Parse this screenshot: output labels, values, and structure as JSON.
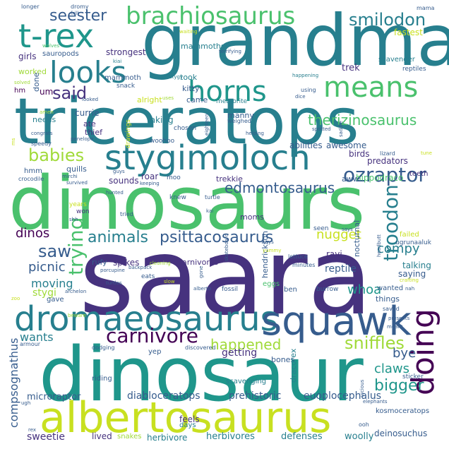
{
  "palette": {
    "dark_purple": "#46327e",
    "deep_purple": "#440154",
    "blue": "#365c8d",
    "teal": "#277f8e",
    "teal_dark": "#1f968b",
    "green": "#4ac16d",
    "light_green": "#a0da39",
    "yellow": "#c8e020",
    "pale_yellow": "#fde725"
  },
  "words": {
    "saara": "saara",
    "dinosaurs": "dinosaurs",
    "dinosaur": "dinosaur",
    "grandma": "grandma",
    "triceratops": "triceratops",
    "stygimoloch": "stygimoloch",
    "albertosaurus": "albertosaurus",
    "dromaeosaurus": "dromaeosaurus",
    "squawk": "squawk",
    "t_rex": "t-rex",
    "brachiosaurus": "brachiosaurus",
    "horns": "horns",
    "means": "means",
    "looks": "looks",
    "seester": "seester",
    "smilodon": "smilodon",
    "doing": "doing",
    "ozraptor": "ozraptor",
    "troodon": "troodon",
    "trying": "trying",
    "carnivore": "carnivore",
    "bigger": "bigger",
    "sniffles": "sniffles",
    "happened": "happened",
    "animals": "animals",
    "psittacosaurus": "psittacosaurus",
    "edmontosaurus": "edmontosaurus",
    "babies": "babies",
    "said": "said",
    "saw": "saw",
    "therizinosaurus": "therizinosaurus",
    "nugget": "nugget",
    "compy": "compy",
    "picnic": "picnic",
    "moving": "moving",
    "dinos": "dinos",
    "whoa": "whoa",
    "reptile": "reptile",
    "claws": "claws",
    "bye": "bye",
    "compsognathus": "compsognathus",
    "diabloceratops": "diabloceratops",
    "prehistoric": "prehistoric",
    "euoplocephalus": "euoplocephalus",
    "kosmoceratops": "kosmoceratops",
    "deinosuchus": "deinosuchus",
    "herbivores": "herbivores",
    "herbivore": "herbivore",
    "defenses": "defenses",
    "woolly": "woolly",
    "sweetie": "sweetie",
    "lived": "lived",
    "snakes": "snakes",
    "feels": "feels",
    "days": "days",
    "microraptor": "microraptor",
    "riding": "riding",
    "scavenging": "scavenging",
    "getting": "getting",
    "bones": "bones",
    "dracorex": "dracorex",
    "wants": "wants",
    "armour": "armour",
    "dodging": "dodging",
    "yep": "yep",
    "discovered": "discovered",
    "mammoths": "mammoths",
    "took": "took",
    "kitty": "kitty",
    "strongest": "strongest",
    "sauropods": "sauropods",
    "kiai": "kiai",
    "mammoth": "mammoth",
    "snack": "snack",
    "stygy": "stygy",
    "girls": "girls",
    "wolves": "wolves",
    "dromy": "dromy",
    "frill": "frill",
    "longer": "longer",
    "mama": "mama",
    "fastest": "fastest",
    "scavenger": "scavenger",
    "reptiles": "reptiles",
    "trek": "trek",
    "um": "um",
    "done": "done",
    "worked": "worked",
    "hm": "hm",
    "solved": "solved",
    "needs": "needs",
    "currie": "currie",
    "ate": "ate",
    "thief": "thief",
    "taking": "taking",
    "chosen": "chosen",
    "alright": "alright",
    "came": "came",
    "meteorite": "meteorite",
    "manny": "manny",
    "weighed": "weighed",
    "eighteen": "eighteen",
    "dice": "dice",
    "using": "using",
    "happening": "happening",
    "terrifying": "terrifying",
    "waiting": "waiting",
    "helping": "helping",
    "abilities": "abilities",
    "awesome": "awesome",
    "spotted": "spotted",
    "birds": "birds",
    "lizard": "lizard",
    "predators": "predators",
    "teeth": "teeth",
    "hmm": "hmm",
    "quills": "quills",
    "crocodile": "crocodile",
    "survived": "survived",
    "sounds": "sounds",
    "roar": "roar",
    "moo": "moo",
    "trekkie": "trekkie",
    "aww": "aww",
    "hippodraco": "hippodraco",
    "moms": "moms",
    "years": "years",
    "won": "won",
    "shh": "shh",
    "seen": "seen",
    "kai": "kai",
    "turtle": "turtle",
    "knew": "knew",
    "tried": "tried",
    "hunted": "hunted",
    "ravi": "ravi",
    "nocturnal": "nocturnal",
    "failed": "failed",
    "ugrunaaluk": "ugrunaaluk",
    "talking": "talking",
    "saying": "saying",
    "crafting": "crafting",
    "spikes": "spikes",
    "carnivores": "carnivores",
    "rufy": "rufy",
    "eats": "eats",
    "stygi": "stygi",
    "gave": "gave",
    "archelon": "archelon",
    "turtles": "turtles",
    "alberto": "alberto",
    "fossil": "fossil",
    "eggs": "eggs",
    "ben": "ben",
    "burrow": "burrow",
    "hendrickson": "hendrickson",
    "lettuce": "lettuce",
    "minutes": "minutes",
    "things": "things",
    "wanted": "wanted",
    "saved": "saved",
    "presents": "presents",
    "meant": "meant",
    "skateboard": "skateboard",
    "cleaning": "cleaning",
    "backpack": "backpack",
    "porcupine": "porcupine",
    "penelope": "penelope",
    "congrats": "congrats",
    "speedy": "speedy",
    "mirchi": "mirchi",
    "drawings": "drawings",
    "woohoo": "woohoo",
    "guys": "guys",
    "keeping": "keeping",
    "looked": "looked",
    "uses": "uses",
    "saddle": "saddle",
    "ooh": "ooh",
    "rex": "rex",
    "ugh": "ugh",
    "sticker": "sticker",
    "elephants": "elephants",
    "vicious": "vicious",
    "amen": "amen",
    "ms": "ms",
    "nah": "nah",
    "says": "says",
    "headbutt": "headbutt",
    "gone": "gone",
    "slow": "slow",
    "tune": "tune",
    "beware": "beware",
    "zoo": "zoo",
    "ways": "ways",
    "yummy": "yummy"
  }
}
